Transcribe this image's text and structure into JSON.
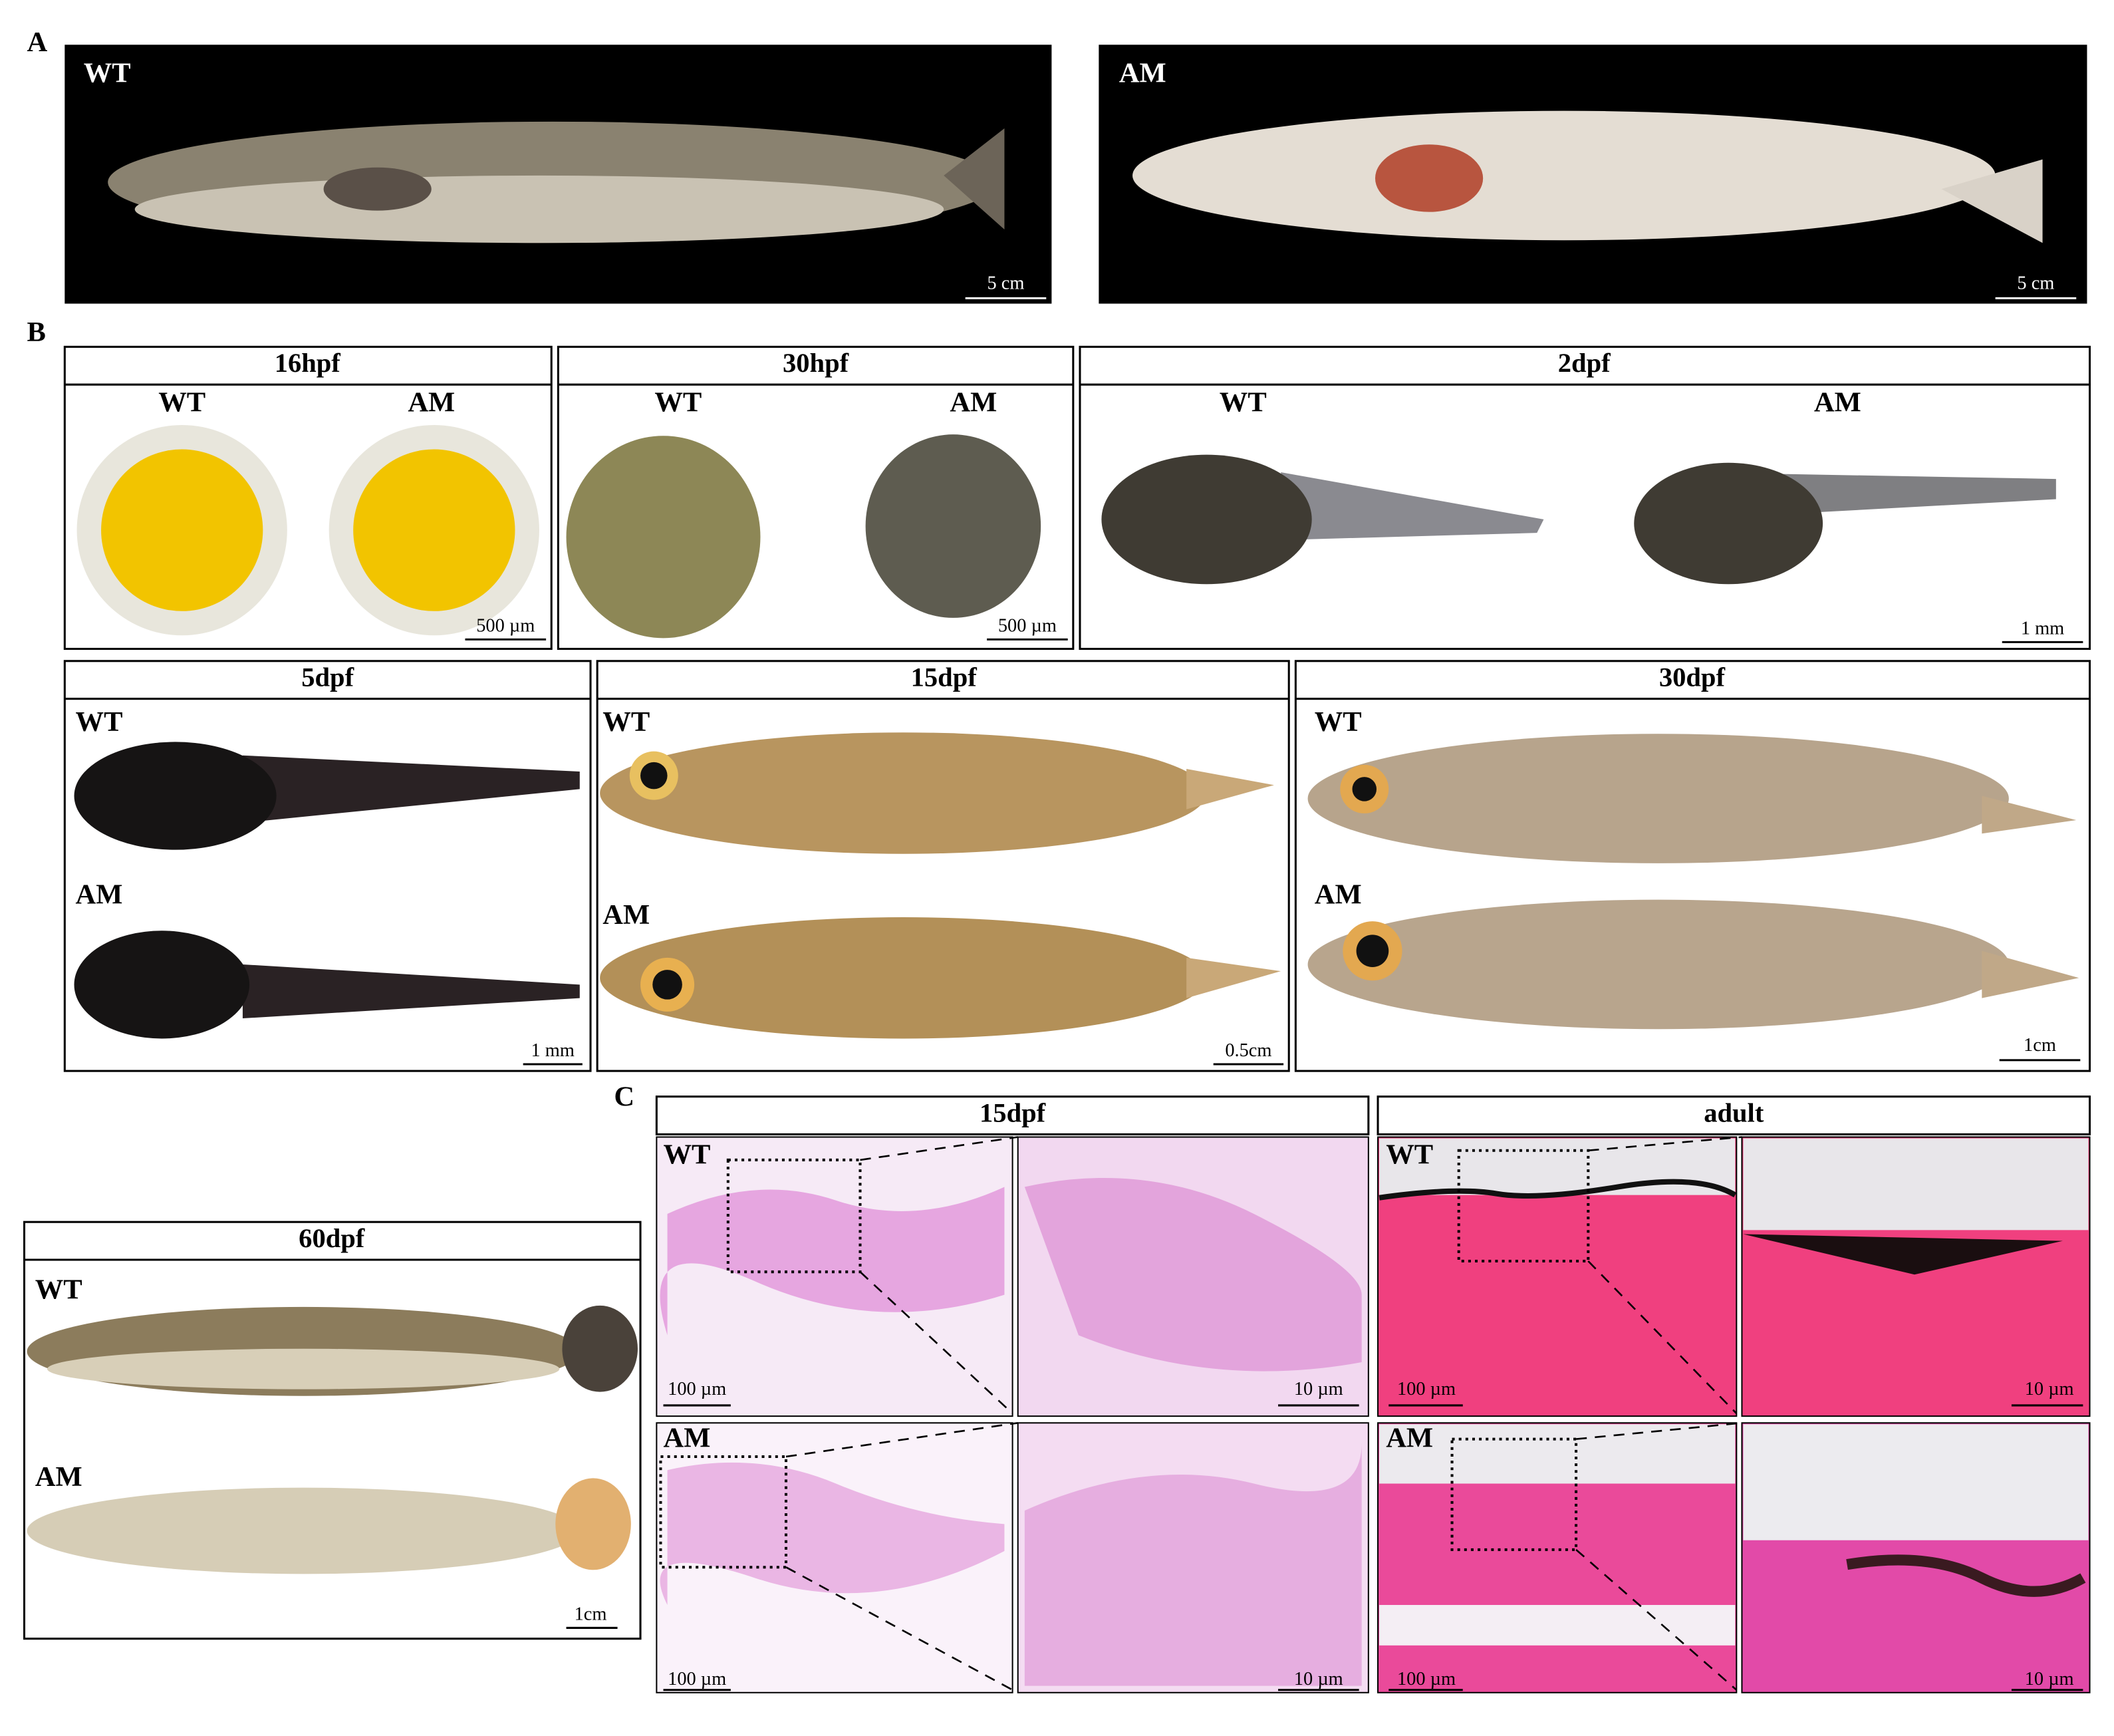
{
  "panel_a": {
    "letter": "A",
    "images": [
      {
        "label": "WT",
        "scale": "5 cm"
      },
      {
        "label": "AM",
        "scale": "5 cm"
      }
    ]
  },
  "panel_b": {
    "letter": "B",
    "stages": [
      {
        "title": "16hpf",
        "labels": [
          "WT",
          "AM"
        ],
        "scale": "500 µm"
      },
      {
        "title": "30hpf",
        "labels": [
          "WT",
          "AM"
        ],
        "scale": "500 µm"
      },
      {
        "title": "2dpf",
        "labels": [
          "WT",
          "AM"
        ],
        "scale": "1 mm"
      },
      {
        "title": "5dpf",
        "labels": [
          "WT",
          "AM"
        ],
        "scale": "1 mm"
      },
      {
        "title": "15dpf",
        "labels": [
          "WT",
          "AM"
        ],
        "scale": "0.5cm"
      },
      {
        "title": "30dpf",
        "labels": [
          "WT",
          "AM"
        ],
        "scale": "1cm"
      },
      {
        "title": "60dpf",
        "labels": [
          "WT",
          "AM"
        ],
        "scale": "1cm"
      }
    ]
  },
  "panel_c": {
    "letter": "C",
    "groups": [
      {
        "title": "15dpf",
        "rows": [
          {
            "label": "WT",
            "scales": [
              "100 µm",
              "10 µm"
            ]
          },
          {
            "label": "AM",
            "scales": [
              "100 µm",
              "10 µm"
            ]
          }
        ]
      },
      {
        "title": "adult",
        "rows": [
          {
            "label": "WT",
            "scales": [
              "100 µm",
              "10 µm"
            ]
          },
          {
            "label": "AM",
            "scales": [
              "100 µm",
              "10 µm"
            ]
          }
        ]
      }
    ]
  }
}
